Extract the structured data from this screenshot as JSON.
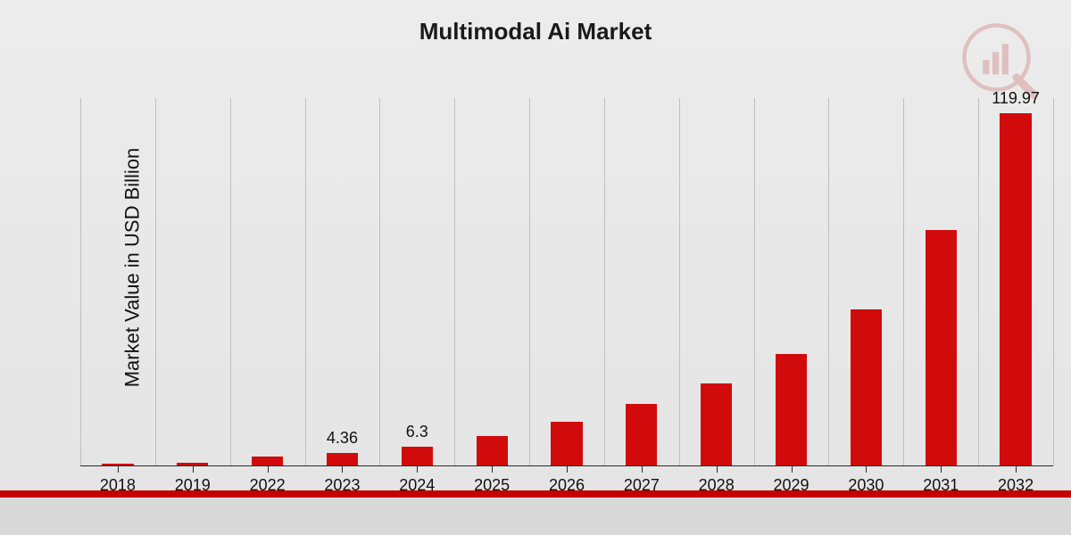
{
  "chart": {
    "type": "bar",
    "title": "Multimodal Ai Market",
    "title_fontsize": 26,
    "ylabel": "Market Value in USD Billion",
    "ylabel_fontsize": 22,
    "categories": [
      "2018",
      "2019",
      "2022",
      "2023",
      "2024",
      "2025",
      "2026",
      "2027",
      "2028",
      "2029",
      "2030",
      "2031",
      "2032"
    ],
    "values": [
      0.5,
      1,
      3,
      4.36,
      6.3,
      10,
      15,
      21,
      28,
      38,
      53,
      80,
      119.97
    ],
    "value_labels": [
      "",
      "",
      "",
      "4.36",
      "6.3",
      "",
      "",
      "",
      "",
      "",
      "",
      "",
      "119.97"
    ],
    "ymax": 125,
    "bar_color": "#d10b0b",
    "bar_width_ratio": 0.42,
    "grid_color": "#bfbfbf",
    "axis_color": "#2a2a2a",
    "background_gradient": [
      "#ececec",
      "#e4e4e4"
    ],
    "label_fontsize": 18,
    "value_label_fontsize": 18,
    "text_color": "#111111"
  },
  "footer": {
    "red_band_color": "#c40000",
    "grey_band_color": "#d9d9d9"
  },
  "watermark": {
    "present": true,
    "name": "market-research-logo",
    "color": "#b00000",
    "opacity": 0.18
  }
}
